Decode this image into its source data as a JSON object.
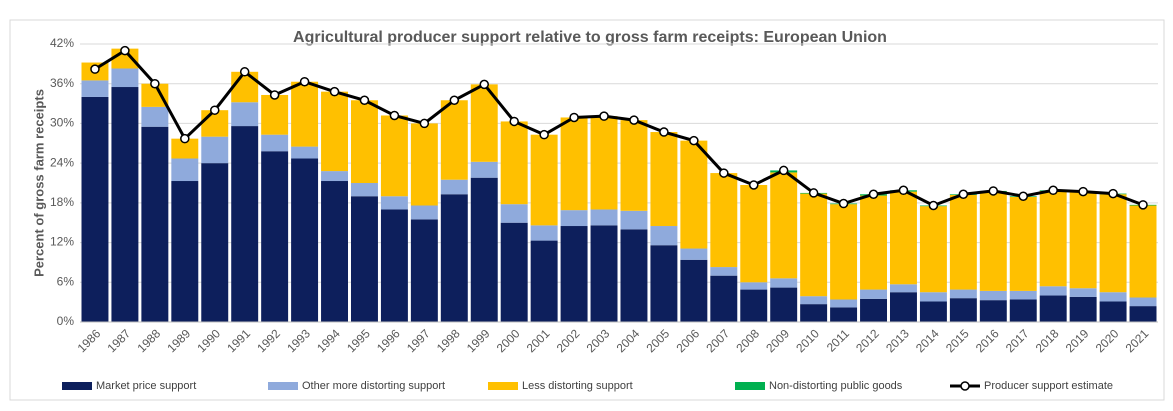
{
  "chart_data": {
    "type": "bar",
    "stacked": true,
    "title": "Agricultural producer support relative to gross farm receipts: European Union",
    "y_label": "Percent of gross farm receipts",
    "categories": [
      "1986",
      "1987",
      "1988",
      "1989",
      "1990",
      "1991",
      "1992",
      "1993",
      "1994",
      "1995",
      "1996",
      "1997",
      "1998",
      "1999",
      "2000",
      "2001",
      "2002",
      "2003",
      "2004",
      "2005",
      "2006",
      "2007",
      "2008",
      "2009",
      "2010",
      "2011",
      "2012",
      "2013",
      "2014",
      "2015",
      "2016",
      "2017",
      "2018",
      "2019",
      "2020",
      "2021"
    ],
    "series": [
      {
        "name": "Market price support",
        "color": "#0d1f5c",
        "values": [
          34,
          35.5,
          29.5,
          21.3,
          24,
          29.6,
          25.8,
          24.7,
          21.3,
          19,
          17,
          15.5,
          19.3,
          21.8,
          15,
          12.3,
          14.5,
          14.6,
          14,
          11.6,
          9.4,
          7,
          4.9,
          5.2,
          2.7,
          2.2,
          3.5,
          4.5,
          3.1,
          3.6,
          3.3,
          3.4,
          4,
          3.8,
          3.1,
          2.4
        ]
      },
      {
        "name": "Other more distorting support",
        "color": "#8faadc",
        "values": [
          2.5,
          2.8,
          3,
          3.4,
          4,
          3.6,
          2.5,
          1.8,
          1.5,
          2,
          2,
          2.1,
          2.2,
          2.4,
          2.8,
          2.3,
          2.4,
          2.4,
          2.8,
          2.9,
          1.7,
          1.3,
          1.1,
          1.4,
          1.2,
          1.2,
          1.4,
          1.2,
          1.4,
          1.3,
          1.4,
          1.3,
          1.4,
          1.3,
          1.4,
          1.3
        ]
      },
      {
        "name": "Less distorting support",
        "color": "#ffc000",
        "values": [
          2.7,
          3,
          3.5,
          3,
          4,
          4.6,
          6,
          9.8,
          12,
          12.5,
          12.2,
          12.4,
          12,
          11.7,
          12.5,
          13.7,
          14,
          14.1,
          13.7,
          14.2,
          16.3,
          14.2,
          14.7,
          16,
          15.5,
          14.4,
          14.2,
          14,
          13,
          14.3,
          15,
          14.2,
          14.4,
          14.5,
          14.8,
          13.9
        ]
      },
      {
        "name": "Non-distorting public goods",
        "color": "#00b050",
        "values": [
          0,
          0,
          0,
          0,
          0,
          0,
          0,
          0,
          0,
          0,
          0,
          0,
          0,
          0,
          0,
          0,
          0,
          0,
          0,
          0,
          0,
          0,
          0,
          0.3,
          0.1,
          0.1,
          0.2,
          0.2,
          0.1,
          0.1,
          0.1,
          0.1,
          0.1,
          0.1,
          0.1,
          0.1
        ]
      },
      {
        "name": "Producer support estimate",
        "type": "line",
        "color": "#000000",
        "values": [
          38.2,
          41,
          36,
          27.7,
          32,
          37.8,
          34.3,
          36.3,
          34.8,
          33.5,
          31.2,
          30,
          33.5,
          35.9,
          30.3,
          28.3,
          30.9,
          31.1,
          30.5,
          28.7,
          27.4,
          22.5,
          20.7,
          22.9,
          19.5,
          17.9,
          19.3,
          19.9,
          17.6,
          19.3,
          19.8,
          19,
          19.9,
          19.7,
          19.4,
          17.7
        ]
      }
    ],
    "ylim": [
      0,
      42
    ],
    "yticks": [
      {
        "value": 0,
        "label": "0%"
      },
      {
        "value": 6,
        "label": "6%"
      },
      {
        "value": 12,
        "label": "12%"
      },
      {
        "value": 18,
        "label": "18%"
      },
      {
        "value": 24,
        "label": "24%"
      },
      {
        "value": 30,
        "label": "30%"
      },
      {
        "value": 36,
        "label": "36%"
      },
      {
        "value": 42,
        "label": "42%"
      }
    ],
    "grid": true
  }
}
